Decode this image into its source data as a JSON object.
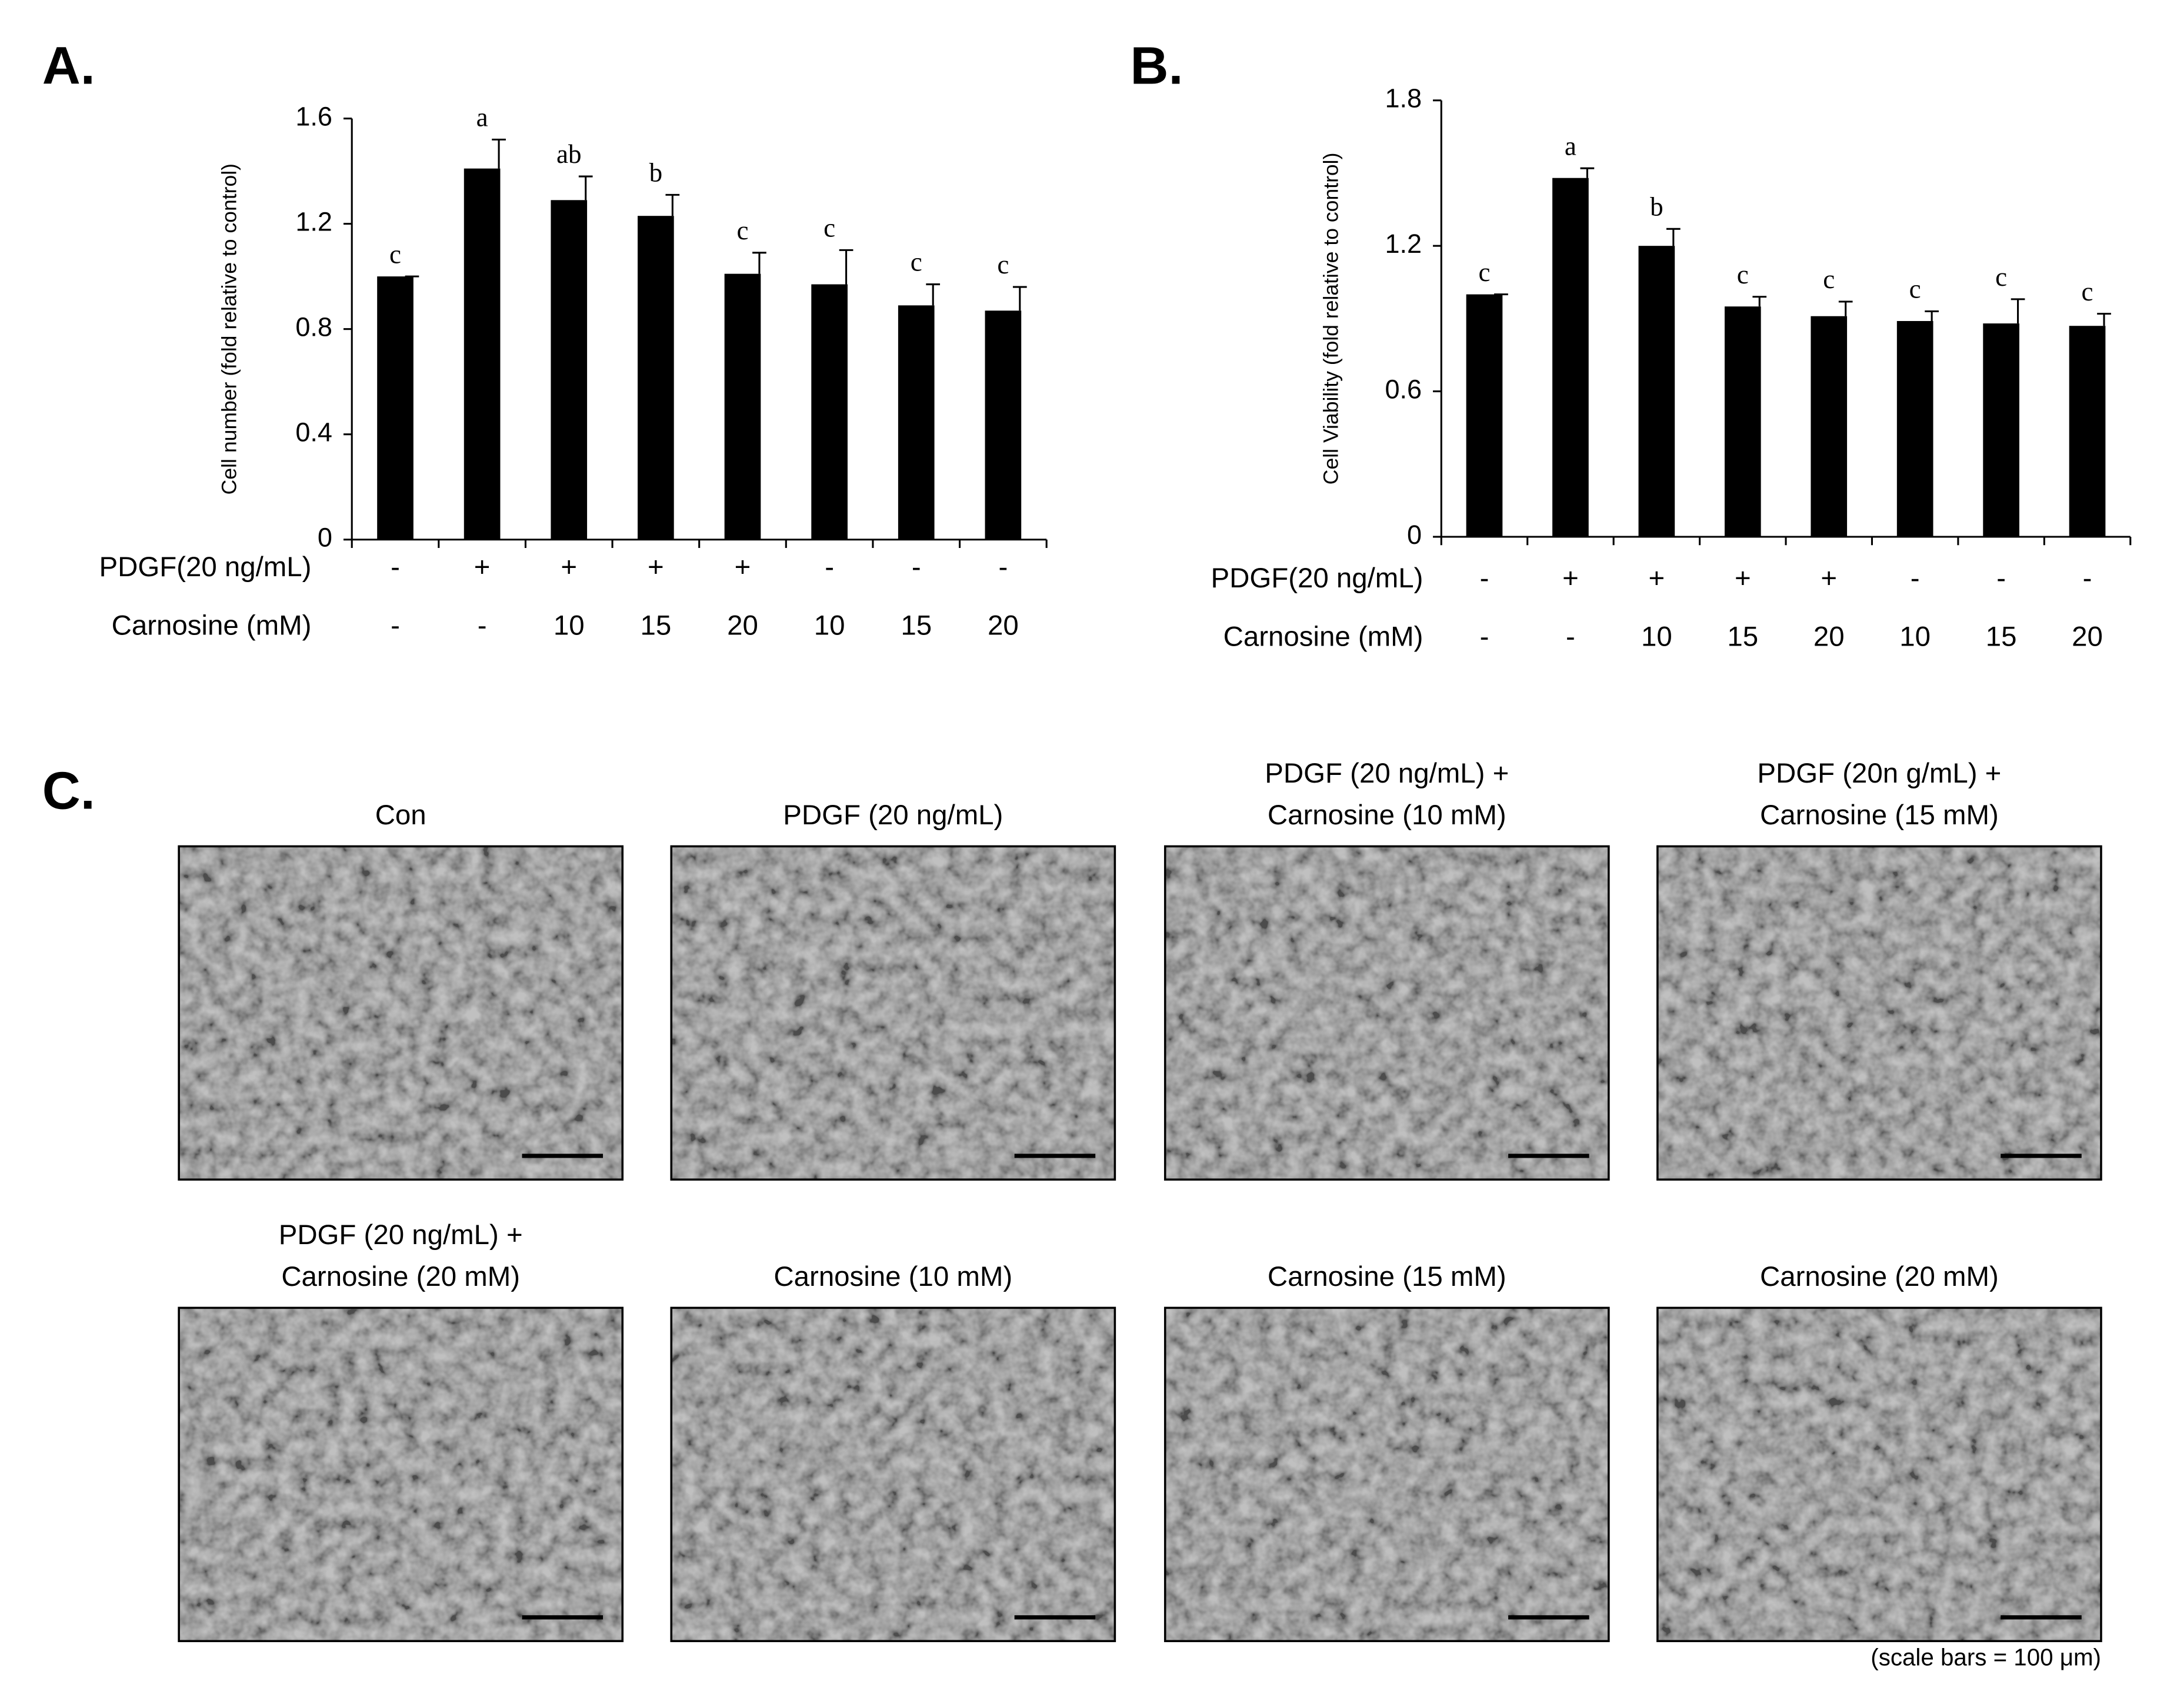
{
  "chart_data": [
    {
      "type": "bar",
      "panel_label": "A.",
      "y_label": "Cell number (fold relative to control)",
      "values": [
        1.0,
        1.41,
        1.29,
        1.23,
        1.01,
        0.97,
        0.89,
        0.87
      ],
      "errors": [
        0,
        0.11,
        0.09,
        0.08,
        0.08,
        0.13,
        0.08,
        0.09
      ],
      "annotations": [
        "c",
        "a",
        "ab",
        "b",
        "c",
        "c",
        "c",
        "c"
      ],
      "conditions": [
        {
          "name": "PDGF(20 ng/mL)",
          "values": [
            "-",
            "+",
            "+",
            "+",
            "+",
            "-",
            "-",
            "-"
          ]
        },
        {
          "name": "Carnosine (mM)",
          "values": [
            "-",
            "-",
            "10",
            "15",
            "20",
            "10",
            "15",
            "20"
          ]
        }
      ],
      "color": "#000000",
      "ylim": [
        0,
        1.6
      ],
      "yticks": [
        0,
        0.4,
        0.8,
        1.2,
        1.6
      ]
    },
    {
      "type": "bar",
      "panel_label": "B.",
      "y_label": "Cell Viability (fold relative to control)",
      "values": [
        1.0,
        1.48,
        1.2,
        0.95,
        0.91,
        0.89,
        0.88,
        0.87
      ],
      "errors": [
        0,
        0.04,
        0.07,
        0.04,
        0.06,
        0.04,
        0.1,
        0.05
      ],
      "annotations": [
        "c",
        "a",
        "b",
        "c",
        "c",
        "c",
        "c",
        "c"
      ],
      "conditions": [
        {
          "name": "PDGF(20 ng/mL)",
          "values": [
            "-",
            "+",
            "+",
            "+",
            "+",
            "-",
            "-",
            "-"
          ]
        },
        {
          "name": "Carnosine (mM)",
          "values": [
            "-",
            "-",
            "10",
            "15",
            "20",
            "10",
            "15",
            "20"
          ]
        }
      ],
      "color": "#000000",
      "ylim": [
        0,
        1.8
      ],
      "yticks": [
        0,
        0.6,
        1.2,
        1.8
      ]
    }
  ],
  "panel_c": {
    "panel_label": "C.",
    "titles": [
      [
        "Con"
      ],
      [
        "PDGF (20 ng/mL)"
      ],
      [
        "PDGF (20 ng/mL) +",
        "Carnosine (10 mM)"
      ],
      [
        "PDGF (20n g/mL) +",
        "Carnosine (15 mM)"
      ],
      [
        "PDGF (20 ng/mL) +",
        "Carnosine (20 mM)"
      ],
      [
        "Carnosine (10 mM)"
      ],
      [
        "Carnosine (15 mM)"
      ],
      [
        "Carnosine (20 mM)"
      ]
    ],
    "note": "(scale bars = 100 μm)"
  }
}
